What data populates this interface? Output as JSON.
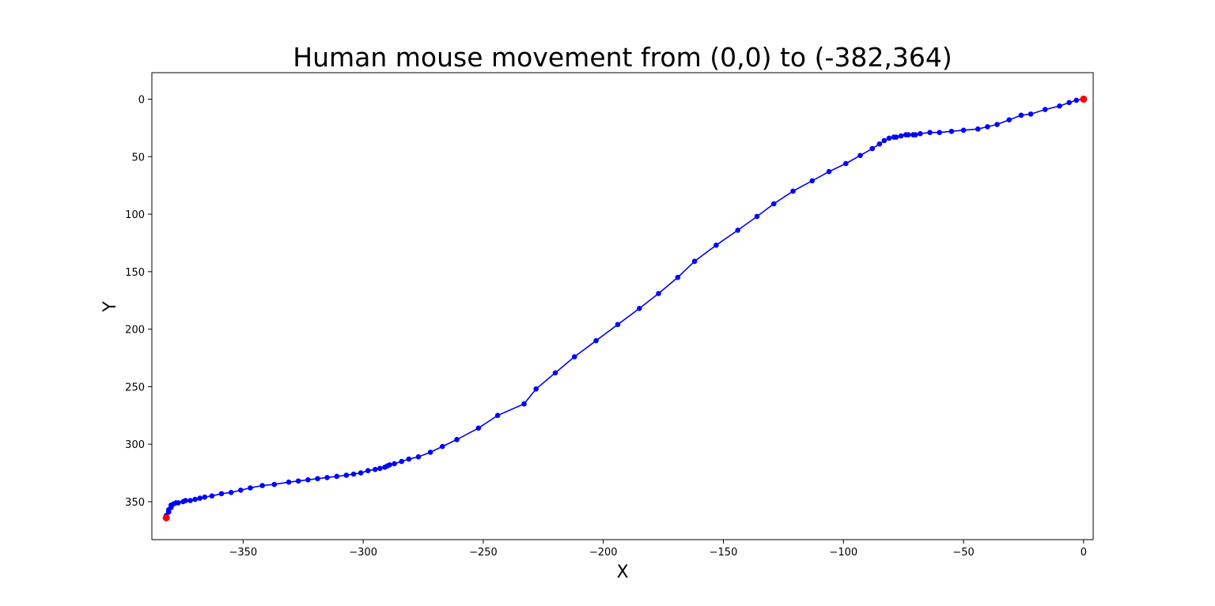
{
  "chart_data": {
    "type": "line",
    "title": "Human mouse movement from (0,0) to (-382,364)",
    "xlabel": "X",
    "ylabel": "Y",
    "xlim": [
      -388,
      4
    ],
    "ylim": [
      383,
      -23
    ],
    "y_inverted": true,
    "grid": false,
    "legend": "none",
    "xticks": [
      -350,
      -300,
      -250,
      -200,
      -150,
      -100,
      -50,
      0
    ],
    "yticks": [
      0,
      50,
      100,
      150,
      200,
      250,
      300,
      350
    ],
    "colors": {
      "path": "#0000ff",
      "endpoints": "#ff0000",
      "axes": "#000000"
    },
    "series": [
      {
        "points": [
          [
            0,
            0
          ],
          [
            -3,
            1
          ],
          [
            -6,
            3
          ],
          [
            -10,
            6
          ],
          [
            -16,
            9
          ],
          [
            -22,
            13
          ],
          [
            -26,
            14
          ],
          [
            -31,
            18
          ],
          [
            -36,
            22
          ],
          [
            -40,
            24
          ],
          [
            -44,
            26
          ],
          [
            -50,
            27
          ],
          [
            -55,
            28
          ],
          [
            -60,
            29
          ],
          [
            -64,
            29
          ],
          [
            -68,
            30
          ],
          [
            -70,
            31
          ],
          [
            -71,
            31
          ],
          [
            -73,
            31
          ],
          [
            -74,
            31
          ],
          [
            -76,
            32
          ],
          [
            -78,
            33
          ],
          [
            -79,
            33
          ],
          [
            -81,
            34
          ],
          [
            -83,
            36
          ],
          [
            -85,
            39
          ],
          [
            -88,
            43
          ],
          [
            -93,
            49
          ],
          [
            -99,
            56
          ],
          [
            -106,
            63
          ],
          [
            -113,
            71
          ],
          [
            -121,
            80
          ],
          [
            -129,
            91
          ],
          [
            -136,
            102
          ],
          [
            -144,
            114
          ],
          [
            -153,
            127
          ],
          [
            -162,
            141
          ],
          [
            -169,
            155
          ],
          [
            -177,
            169
          ],
          [
            -185,
            182
          ],
          [
            -194,
            196
          ],
          [
            -203,
            210
          ],
          [
            -212,
            224
          ],
          [
            -220,
            238
          ],
          [
            -228,
            252
          ],
          [
            -233,
            265
          ],
          [
            -244,
            275
          ],
          [
            -252,
            286
          ],
          [
            -261,
            296
          ],
          [
            -267,
            302
          ],
          [
            -272,
            307
          ],
          [
            -277,
            311
          ],
          [
            -281,
            313
          ],
          [
            -284,
            315
          ],
          [
            -287,
            317
          ],
          [
            -289,
            318
          ],
          [
            -290,
            319
          ],
          [
            -291,
            320
          ],
          [
            -293,
            321
          ],
          [
            -295,
            322
          ],
          [
            -298,
            323
          ],
          [
            -301,
            325
          ],
          [
            -304,
            326
          ],
          [
            -307,
            327
          ],
          [
            -311,
            328
          ],
          [
            -315,
            329
          ],
          [
            -319,
            330
          ],
          [
            -323,
            331
          ],
          [
            -327,
            332
          ],
          [
            -331,
            333
          ],
          [
            -337,
            335
          ],
          [
            -342,
            336
          ],
          [
            -347,
            338
          ],
          [
            -351,
            340
          ],
          [
            -355,
            342
          ],
          [
            -359,
            343
          ],
          [
            -363,
            345
          ],
          [
            -366,
            346
          ],
          [
            -368,
            347
          ],
          [
            -370,
            348
          ],
          [
            -372,
            349
          ],
          [
            -374,
            349
          ],
          [
            -375,
            350
          ],
          [
            -377,
            351
          ],
          [
            -378,
            351
          ],
          [
            -379,
            352
          ],
          [
            -380,
            353
          ],
          [
            -380,
            355
          ],
          [
            -381,
            357
          ],
          [
            -381,
            359
          ],
          [
            -382,
            362
          ],
          [
            -382,
            364
          ]
        ]
      }
    ],
    "endpoints": [
      [
        0,
        0
      ],
      [
        -382,
        364
      ]
    ]
  }
}
